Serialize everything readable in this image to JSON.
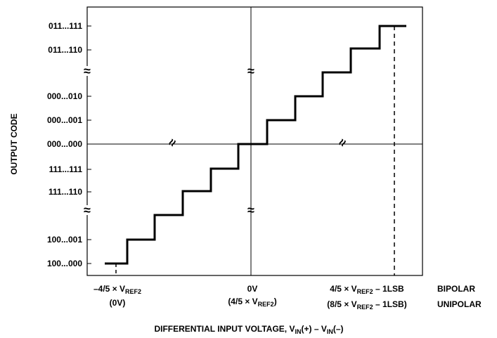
{
  "y_axis": {
    "title": "OUTPUT CODE",
    "ticks": [
      "011...111",
      "011...110",
      "000...010",
      "000...001",
      "000...000",
      "111...111",
      "111...110",
      "100...001",
      "100...000"
    ]
  },
  "x_axis": {
    "left_line1_main": "–4/5 × V",
    "left_line1_sub": "REF2",
    "left_line2": "(0V)",
    "center_line1": "0V",
    "center_line2_main": "(4/5 × V",
    "center_line2_sub": "REF2",
    "center_line2_end": ")",
    "right_line1_main": "4/5 × V",
    "right_line1_sub": "REF2",
    "right_line1_end": " – 1LSB",
    "right_line2_main": "(8/5 × V",
    "right_line2_sub": "REF2",
    "right_line2_end": " – 1LSB)",
    "mode_bipolar": "BIPOLAR",
    "mode_unipolar": "UNIPOLAR"
  },
  "x_title": {
    "main": "DIFFERENTIAL INPUT VOLTAGE, V",
    "sub1": "IN",
    "mid": "(+) – V",
    "sub2": "IN",
    "end": "(–)"
  },
  "break_symbol": "≈"
}
